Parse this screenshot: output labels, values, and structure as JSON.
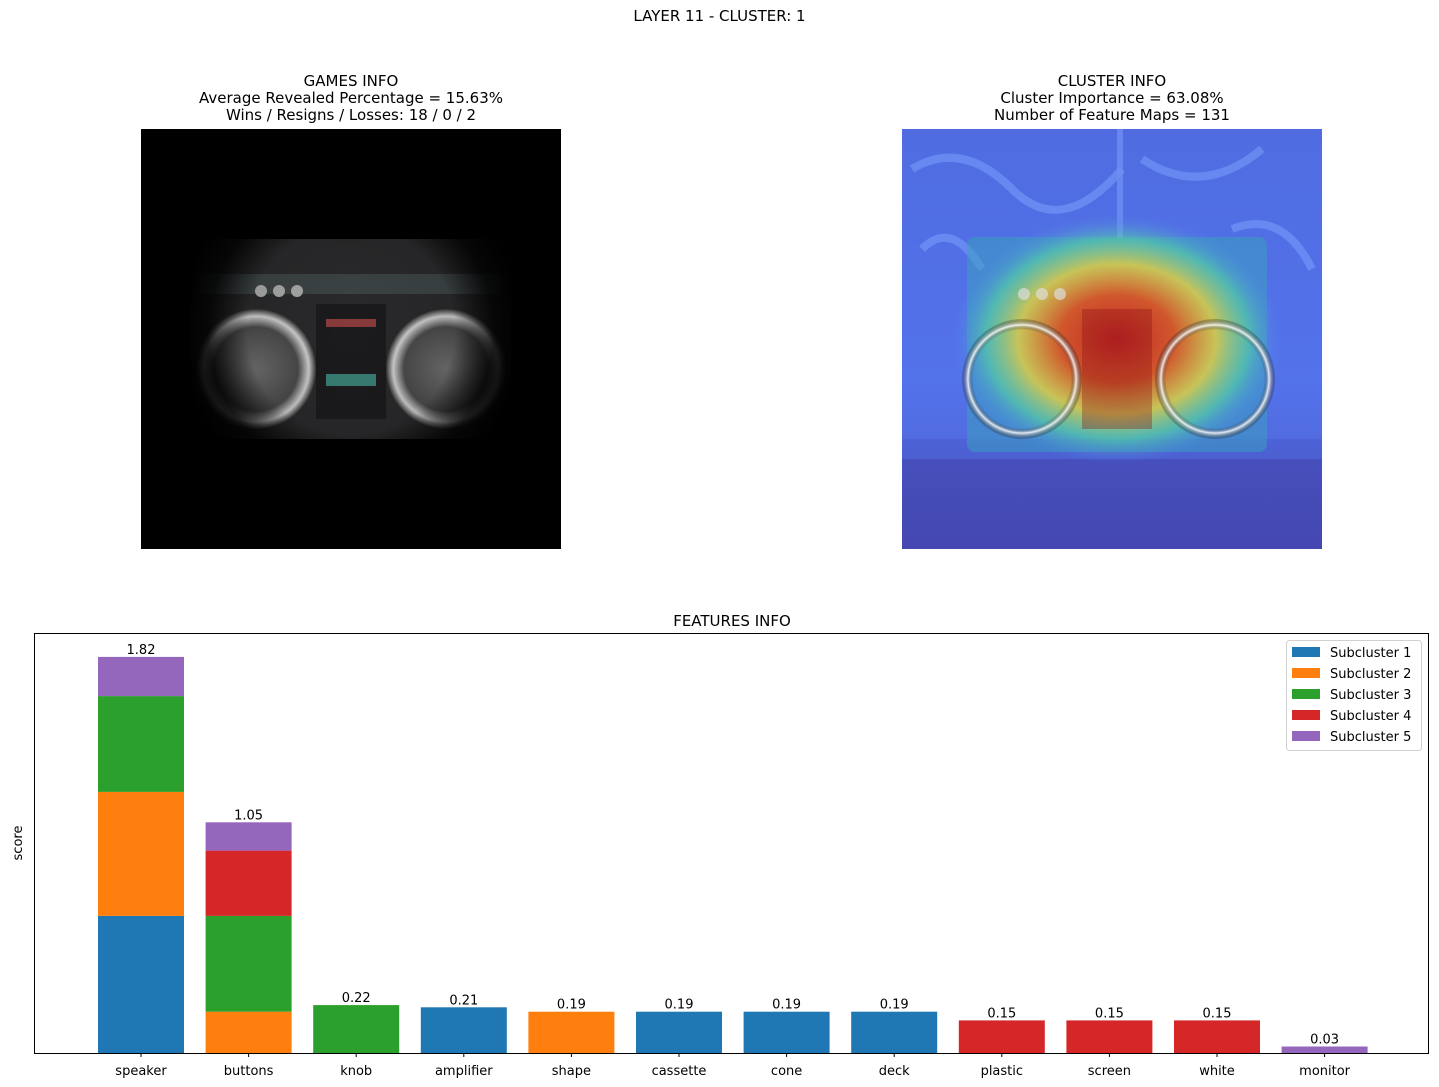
{
  "suptitle": "LAYER 11 - CLUSTER: 1",
  "games_panel": {
    "title_lines": [
      "GAMES INFO",
      "Average Revealed Percentage = 15.63%",
      "Wins / Resigns / Losses: 18 / 0 / 2"
    ]
  },
  "cluster_panel": {
    "title_lines": [
      "CLUSTER INFO",
      "Cluster Importance = 63.08%",
      "Number of Feature Maps = 131"
    ]
  },
  "colors": {
    "Subcluster 1": "#1f77b4",
    "Subcluster 2": "#ff7f0e",
    "Subcluster 3": "#2ca02c",
    "Subcluster 4": "#d62728",
    "Subcluster 5": "#9467bd"
  },
  "chart_data": {
    "type": "bar",
    "stacked": true,
    "title": "FEATURES INFO",
    "ylabel": "score",
    "xlabel": "",
    "ylim": [
      0,
      1.93
    ],
    "grid": false,
    "legend_position": "top-right",
    "categories": [
      "speaker",
      "buttons",
      "knob",
      "amplifier",
      "shape",
      "cassette",
      "cone",
      "deck",
      "plastic",
      "screen",
      "white",
      "monitor"
    ],
    "series": [
      {
        "name": "Subcluster 1",
        "values": [
          0.63,
          0,
          0,
          0.21,
          0,
          0.19,
          0.19,
          0.19,
          0,
          0,
          0,
          0
        ]
      },
      {
        "name": "Subcluster 2",
        "values": [
          0.57,
          0.19,
          0,
          0,
          0.19,
          0,
          0,
          0,
          0,
          0,
          0,
          0
        ]
      },
      {
        "name": "Subcluster 3",
        "values": [
          0.44,
          0.44,
          0.22,
          0,
          0,
          0,
          0,
          0,
          0,
          0,
          0,
          0
        ]
      },
      {
        "name": "Subcluster 4",
        "values": [
          0,
          0.3,
          0,
          0,
          0,
          0,
          0,
          0,
          0.15,
          0.15,
          0.15,
          0
        ]
      },
      {
        "name": "Subcluster 5",
        "values": [
          0.18,
          0.13,
          0,
          0,
          0,
          0,
          0,
          0,
          0,
          0,
          0,
          0.03
        ]
      }
    ],
    "totals": [
      "1.82",
      "1.05",
      "0.22",
      "0.21",
      "0.19",
      "0.19",
      "0.19",
      "0.19",
      "0.15",
      "0.15",
      "0.15",
      "0.03"
    ]
  }
}
